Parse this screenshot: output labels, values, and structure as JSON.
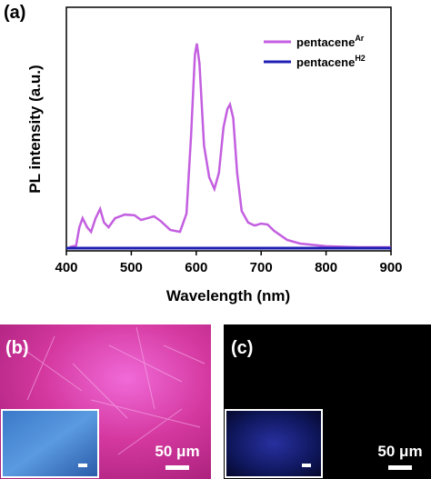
{
  "chart_data": {
    "type": "line",
    "panel_label": "(a)",
    "x_label": "Wavelength (nm)",
    "y_label": "PL intensity (a.u.)",
    "xlim": [
      400,
      900
    ],
    "xticks": [
      400,
      500,
      600,
      700,
      800,
      900
    ],
    "ylim": [
      0,
      1
    ],
    "legend": "top-right",
    "series": [
      {
        "name": "pentacene",
        "name_superscript": "Ar",
        "color": "#c35fe0",
        "x": [
          405,
          415,
          420,
          425,
          432,
          438,
          445,
          452,
          458,
          465,
          475,
          490,
          505,
          515,
          525,
          535,
          545,
          560,
          575,
          585,
          592,
          598,
          601,
          605,
          612,
          620,
          628,
          635,
          642,
          648,
          652,
          657,
          663,
          670,
          680,
          690,
          700,
          710,
          720,
          740,
          760,
          800,
          850,
          900
        ],
        "values": [
          0.015,
          0.022,
          0.097,
          0.134,
          0.097,
          0.078,
          0.134,
          0.172,
          0.116,
          0.097,
          0.134,
          0.149,
          0.146,
          0.127,
          0.134,
          0.142,
          0.123,
          0.086,
          0.078,
          0.153,
          0.47,
          0.806,
          0.851,
          0.769,
          0.433,
          0.302,
          0.254,
          0.321,
          0.507,
          0.582,
          0.601,
          0.545,
          0.321,
          0.164,
          0.116,
          0.104,
          0.112,
          0.108,
          0.082,
          0.045,
          0.03,
          0.019,
          0.015,
          0.015
        ]
      },
      {
        "name": "pentacene",
        "name_superscript": "H2",
        "color": "#1f1fb4",
        "x": [
          400,
          900
        ],
        "values": [
          0.011,
          0.011
        ]
      }
    ]
  },
  "panels": [
    {
      "label": "(b)",
      "scale_bar": "50 μm"
    },
    {
      "label": "(c)",
      "scale_bar": "50 μm"
    }
  ]
}
